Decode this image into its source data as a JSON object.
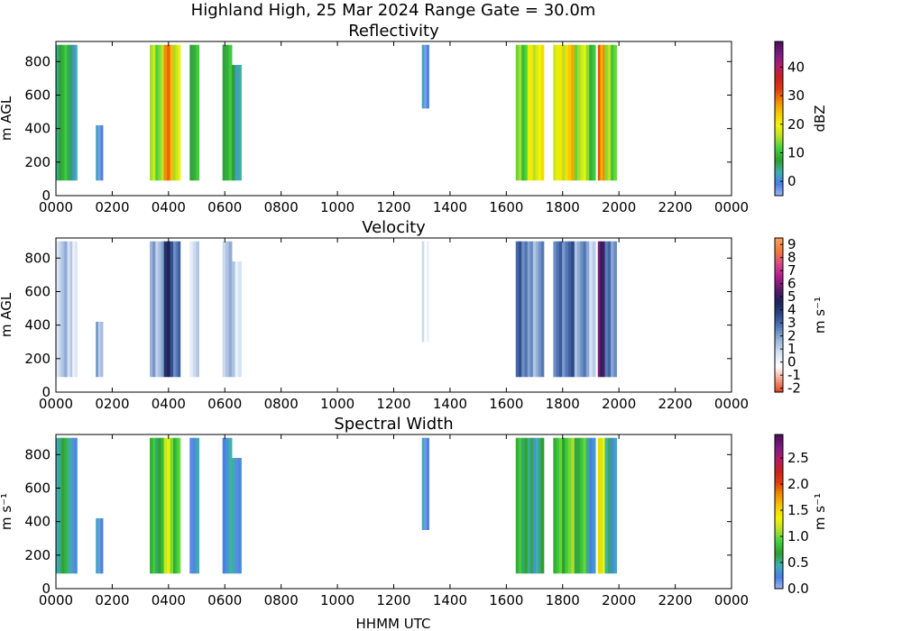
{
  "figure": {
    "title": "Highland High, 25 Mar 2024 Range Gate = 30.0m",
    "xlabel": "HHMM UTC"
  },
  "chart_data": [
    {
      "type": "heatmap",
      "title": "Reflectivity",
      "ylabel": "m AGL",
      "colorbar_label": "dBZ",
      "colorbar_ticks": [
        "0",
        "10",
        "20",
        "30",
        "40"
      ],
      "colorbar_range": [
        -5,
        49
      ],
      "colorbar_colors": [
        "#9fb8f0",
        "#4a7de8",
        "#3fb0b0",
        "#2e9e2e",
        "#3fd23f",
        "#b8e02a",
        "#f5f500",
        "#f5c800",
        "#f08a00",
        "#e03a10",
        "#c82020",
        "#b01d6a",
        "#7a1a82",
        "#4a0e5a"
      ],
      "xlim_hours": [
        0,
        24
      ],
      "x_tick_labels": [
        "0000",
        "0200",
        "0400",
        "0600",
        "0800",
        "1000",
        "1200",
        "1400",
        "1600",
        "1800",
        "2000",
        "2200",
        "0000"
      ],
      "y_ticks": [
        "0",
        "200",
        "400",
        "600",
        "800"
      ],
      "ylim": [
        0,
        920
      ],
      "echo_bands_hhmm": [
        {
          "start": "0000",
          "end": "0030",
          "bottom": 90,
          "top": 900,
          "value_dBZ": 8
        },
        {
          "start": "0030",
          "end": "0045",
          "bottom": 90,
          "top": 900,
          "value_dBZ": 3
        },
        {
          "start": "0125",
          "end": "0140",
          "bottom": 90,
          "top": 420,
          "value_dBZ": 0
        },
        {
          "start": "0320",
          "end": "0350",
          "bottom": 90,
          "top": 900,
          "value_dBZ": 14
        },
        {
          "start": "0350",
          "end": "0410",
          "bottom": 90,
          "top": 900,
          "value_dBZ": 28
        },
        {
          "start": "0410",
          "end": "0425",
          "bottom": 90,
          "top": 900,
          "value_dBZ": 16
        },
        {
          "start": "0445",
          "end": "0505",
          "bottom": 90,
          "top": 900,
          "value_dBZ": 9
        },
        {
          "start": "0555",
          "end": "0615",
          "bottom": 90,
          "top": 900,
          "value_dBZ": 10
        },
        {
          "start": "0615",
          "end": "0635",
          "bottom": 90,
          "top": 780,
          "value_dBZ": 4
        },
        {
          "start": "1300",
          "end": "1315",
          "bottom": 520,
          "top": 900,
          "value_dBZ": 0
        },
        {
          "start": "1620",
          "end": "1645",
          "bottom": 90,
          "top": 900,
          "value_dBZ": 12
        },
        {
          "start": "1645",
          "end": "1720",
          "bottom": 90,
          "top": 900,
          "value_dBZ": 19
        },
        {
          "start": "1740",
          "end": "1805",
          "bottom": 90,
          "top": 900,
          "value_dBZ": 18
        },
        {
          "start": "1805",
          "end": "1825",
          "bottom": 90,
          "top": 900,
          "value_dBZ": 24
        },
        {
          "start": "1825",
          "end": "1850",
          "bottom": 90,
          "top": 900,
          "value_dBZ": 16
        },
        {
          "start": "1850",
          "end": "1910",
          "bottom": 90,
          "top": 900,
          "value_dBZ": 11
        },
        {
          "start": "1915",
          "end": "1930",
          "bottom": 90,
          "top": 900,
          "value_dBZ": 29
        },
        {
          "start": "1930",
          "end": "1955",
          "bottom": 90,
          "top": 900,
          "value_dBZ": 13
        }
      ]
    },
    {
      "type": "heatmap",
      "title": "Velocity",
      "ylabel": "m AGL",
      "colorbar_label": "m s⁻¹",
      "colorbar_ticks": [
        "-2",
        "-1",
        "0",
        "1",
        "2",
        "3",
        "4",
        "5",
        "6",
        "7",
        "8",
        "9"
      ],
      "colorbar_range": [
        -2.3,
        9.5
      ],
      "colorbar_colors": [
        "#e04020",
        "#f2a08a",
        "#ffffff",
        "#d8e4f4",
        "#9fb8dc",
        "#5a7fbc",
        "#2e4a8c",
        "#1a2458",
        "#5a1a6a",
        "#b01d8a",
        "#d84a8a",
        "#f07a3a",
        "#f5a060"
      ],
      "xlim_hours": [
        0,
        24
      ],
      "x_tick_labels": [
        "0000",
        "0200",
        "0400",
        "0600",
        "0800",
        "1000",
        "1200",
        "1400",
        "1600",
        "1800",
        "2000",
        "2200",
        "0000"
      ],
      "y_ticks": [
        "0",
        "200",
        "400",
        "600",
        "800"
      ],
      "ylim": [
        0,
        920
      ],
      "echo_bands_hhmm": [
        {
          "start": "0000",
          "end": "0030",
          "bottom": 90,
          "top": 900,
          "value": 1.2
        },
        {
          "start": "0030",
          "end": "0045",
          "bottom": 90,
          "top": 900,
          "value": 0.6
        },
        {
          "start": "0125",
          "end": "0140",
          "bottom": 90,
          "top": 420,
          "value": 1.8
        },
        {
          "start": "0320",
          "end": "0350",
          "bottom": 90,
          "top": 900,
          "value": 1.5
        },
        {
          "start": "0350",
          "end": "0410",
          "bottom": 90,
          "top": 900,
          "value": 4.2
        },
        {
          "start": "0410",
          "end": "0425",
          "bottom": 90,
          "top": 900,
          "value": 2.5
        },
        {
          "start": "0445",
          "end": "0505",
          "bottom": 90,
          "top": 900,
          "value": 0.8
        },
        {
          "start": "0555",
          "end": "0615",
          "bottom": 90,
          "top": 900,
          "value": 1.6
        },
        {
          "start": "0615",
          "end": "0635",
          "bottom": 90,
          "top": 780,
          "value": 0.7
        },
        {
          "start": "1300",
          "end": "1315",
          "bottom": 300,
          "top": 900,
          "value": 0.4
        },
        {
          "start": "1620",
          "end": "1645",
          "bottom": 90,
          "top": 900,
          "value": 2.8
        },
        {
          "start": "1645",
          "end": "1720",
          "bottom": 90,
          "top": 900,
          "value": 2.0
        },
        {
          "start": "1740",
          "end": "1805",
          "bottom": 90,
          "top": 900,
          "value": 2.6
        },
        {
          "start": "1805",
          "end": "1825",
          "bottom": 90,
          "top": 900,
          "value": 3.2
        },
        {
          "start": "1825",
          "end": "1850",
          "bottom": 90,
          "top": 900,
          "value": 2.1
        },
        {
          "start": "1850",
          "end": "1910",
          "bottom": 90,
          "top": 900,
          "value": 1.2
        },
        {
          "start": "1915",
          "end": "1930",
          "bottom": 90,
          "top": 900,
          "value": 5.5
        },
        {
          "start": "1930",
          "end": "1955",
          "bottom": 90,
          "top": 900,
          "value": 2.4
        }
      ]
    },
    {
      "type": "heatmap",
      "title": "Spectral Width",
      "ylabel": "m s⁻¹",
      "colorbar_label": "m s⁻¹",
      "colorbar_ticks": [
        "0.0",
        "0.5",
        "1.0",
        "1.5",
        "2.0",
        "2.5"
      ],
      "colorbar_range": [
        0,
        2.95
      ],
      "colorbar_colors": [
        "#9fb8f0",
        "#4a7de8",
        "#3fb0b0",
        "#2e9e2e",
        "#3fd23f",
        "#b8e02a",
        "#f5f500",
        "#f5c800",
        "#f08a00",
        "#e03a10",
        "#c82020",
        "#b01d6a",
        "#7a1a82",
        "#4a0e5a"
      ],
      "xlim_hours": [
        0,
        24
      ],
      "x_tick_labels": [
        "0000",
        "0200",
        "0400",
        "0600",
        "0800",
        "1000",
        "1200",
        "1400",
        "1600",
        "1800",
        "2000",
        "2200",
        "0000"
      ],
      "y_ticks": [
        "0",
        "200",
        "400",
        "600",
        "800"
      ],
      "ylim": [
        0,
        920
      ],
      "echo_bands_hhmm": [
        {
          "start": "0000",
          "end": "0030",
          "bottom": 90,
          "top": 900,
          "value": 0.6
        },
        {
          "start": "0030",
          "end": "0045",
          "bottom": 90,
          "top": 900,
          "value": 0.3
        },
        {
          "start": "0125",
          "end": "0140",
          "bottom": 90,
          "top": 420,
          "value": 0.3
        },
        {
          "start": "0320",
          "end": "0350",
          "bottom": 90,
          "top": 900,
          "value": 0.7
        },
        {
          "start": "0350",
          "end": "0410",
          "bottom": 90,
          "top": 900,
          "value": 1.2
        },
        {
          "start": "0410",
          "end": "0425",
          "bottom": 90,
          "top": 900,
          "value": 0.8
        },
        {
          "start": "0445",
          "end": "0505",
          "bottom": 90,
          "top": 900,
          "value": 0.3
        },
        {
          "start": "0555",
          "end": "0615",
          "bottom": 90,
          "top": 900,
          "value": 0.4
        },
        {
          "start": "0615",
          "end": "0635",
          "bottom": 90,
          "top": 780,
          "value": 0.3
        },
        {
          "start": "1300",
          "end": "1315",
          "bottom": 350,
          "top": 900,
          "value": 0.3
        },
        {
          "start": "1620",
          "end": "1645",
          "bottom": 90,
          "top": 900,
          "value": 0.7
        },
        {
          "start": "1645",
          "end": "1720",
          "bottom": 90,
          "top": 900,
          "value": 0.5
        },
        {
          "start": "1740",
          "end": "1805",
          "bottom": 90,
          "top": 900,
          "value": 0.8
        },
        {
          "start": "1805",
          "end": "1825",
          "bottom": 90,
          "top": 900,
          "value": 1.0
        },
        {
          "start": "1825",
          "end": "1850",
          "bottom": 90,
          "top": 900,
          "value": 0.8
        },
        {
          "start": "1850",
          "end": "1910",
          "bottom": 90,
          "top": 900,
          "value": 0.35
        },
        {
          "start": "1915",
          "end": "1930",
          "bottom": 90,
          "top": 900,
          "value": 1.4
        },
        {
          "start": "1930",
          "end": "1955",
          "bottom": 90,
          "top": 900,
          "value": 0.4
        }
      ]
    }
  ]
}
